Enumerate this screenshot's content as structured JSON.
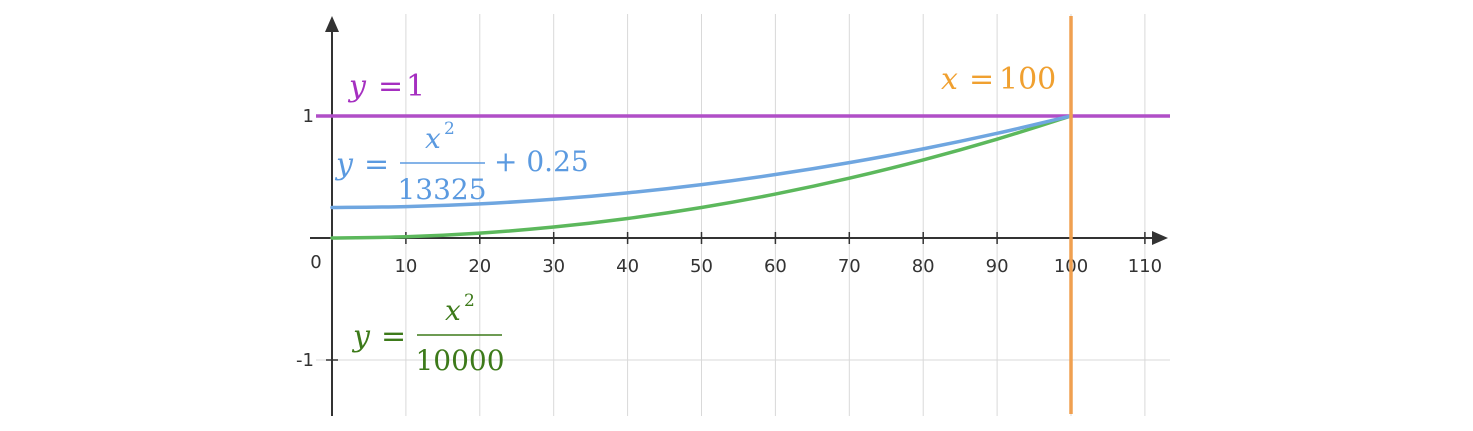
{
  "chart_data": {
    "type": "line",
    "title": "",
    "xlabel": "",
    "ylabel": "",
    "xlim": [
      0,
      113
    ],
    "ylim": [
      -1.45,
      1.8
    ],
    "x_ticks": [
      10,
      20,
      30,
      40,
      50,
      60,
      70,
      80,
      90,
      100,
      110
    ],
    "x_tick_labels": [
      "10",
      "20",
      "30",
      "40",
      "50",
      "60",
      "70",
      "80",
      "90",
      "100",
      "110"
    ],
    "y_ticks": [
      1,
      -1
    ],
    "y_tick_labels": [
      "1",
      "-1"
    ],
    "origin_label": "0",
    "grid": true,
    "series": [
      {
        "name": "y = x²/10000",
        "color": "#5cb85c",
        "x": [
          0,
          10,
          20,
          30,
          40,
          50,
          60,
          70,
          80,
          90,
          100
        ],
        "y": [
          0,
          0.01,
          0.04,
          0.09,
          0.16,
          0.25,
          0.36,
          0.49,
          0.64,
          0.81,
          1.0
        ]
      },
      {
        "name": "y = x²/13325 + 0.25",
        "color": "#6fa6e0",
        "x": [
          0,
          10,
          20,
          30,
          40,
          50,
          60,
          70,
          80,
          90,
          100
        ],
        "y": [
          0.25,
          0.2575,
          0.28,
          0.3175,
          0.37,
          0.4376,
          0.5202,
          0.6177,
          0.7303,
          0.8579,
          1.0005
        ]
      }
    ],
    "horizontal_lines": [
      {
        "name": "y = 1",
        "y": 1,
        "color": "#b04fc7"
      }
    ],
    "vertical_lines": [
      {
        "name": "x = 100",
        "x": 100,
        "color": "#f0a050"
      }
    ],
    "annotations": {
      "y1": {
        "lhs": "y",
        "eq": "=",
        "rhs": "1",
        "color": "#a52fc0"
      },
      "x100": {
        "lhs": "x",
        "eq": "=",
        "rhs": "100",
        "color": "#f0a030"
      },
      "blue": {
        "lhs": "y",
        "eq": "=",
        "num": "x",
        "exp": "2",
        "den": "13325",
        "tail": "+ 0.25",
        "color": "#5b9ae0"
      },
      "green": {
        "lhs": "y",
        "eq": "=",
        "num": "x",
        "exp": "2",
        "den": "10000",
        "color": "#3d7a1a"
      }
    }
  }
}
